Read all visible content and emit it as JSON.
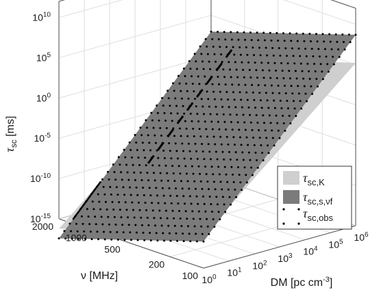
{
  "chart_data": {
    "type": "surface",
    "xlabel_main": "DM [pc cm",
    "xlabel_sup": "-3",
    "xlabel_tail": "]",
    "ylabel": "ν [MHz]",
    "zlabel_main": "τ",
    "zlabel_sub": "sc",
    "zlabel_tail": " [ms]",
    "x_scale": "log",
    "z_scale": "log",
    "xlim": [
      1,
      1000000
    ],
    "ylim": [
      100,
      2000
    ],
    "zlim": [
      1e-15,
      1000000000000.0
    ],
    "x_ticks": [
      {
        "base": "10",
        "exp": "0"
      },
      {
        "base": "10",
        "exp": "1"
      },
      {
        "base": "10",
        "exp": "2"
      },
      {
        "base": "10",
        "exp": "3"
      },
      {
        "base": "10",
        "exp": "4"
      },
      {
        "base": "10",
        "exp": "5"
      },
      {
        "base": "10",
        "exp": "6"
      }
    ],
    "y_ticks": [
      "2000",
      "1000",
      "500",
      "200",
      "100"
    ],
    "z_ticks": [
      {
        "base": "10",
        "exp": "-15"
      },
      {
        "base": "10",
        "exp": "-10"
      },
      {
        "base": "10",
        "exp": "-5"
      },
      {
        "base": "10",
        "exp": "0"
      },
      {
        "base": "10",
        "exp": "5"
      },
      {
        "base": "10",
        "exp": "10"
      }
    ],
    "series": [
      {
        "name_main": "τ",
        "name_sub": "sc,K",
        "color": "#cfcfcf",
        "style": "surface"
      },
      {
        "name_main": "τ",
        "name_sub": "sc,s,νf",
        "color": "#7b7b7b",
        "style": "surface"
      },
      {
        "name_main": "τ",
        "name_sub": "sc,obs",
        "color": "#000000",
        "style": "dots"
      }
    ],
    "grid": true,
    "legend_position": "right"
  }
}
